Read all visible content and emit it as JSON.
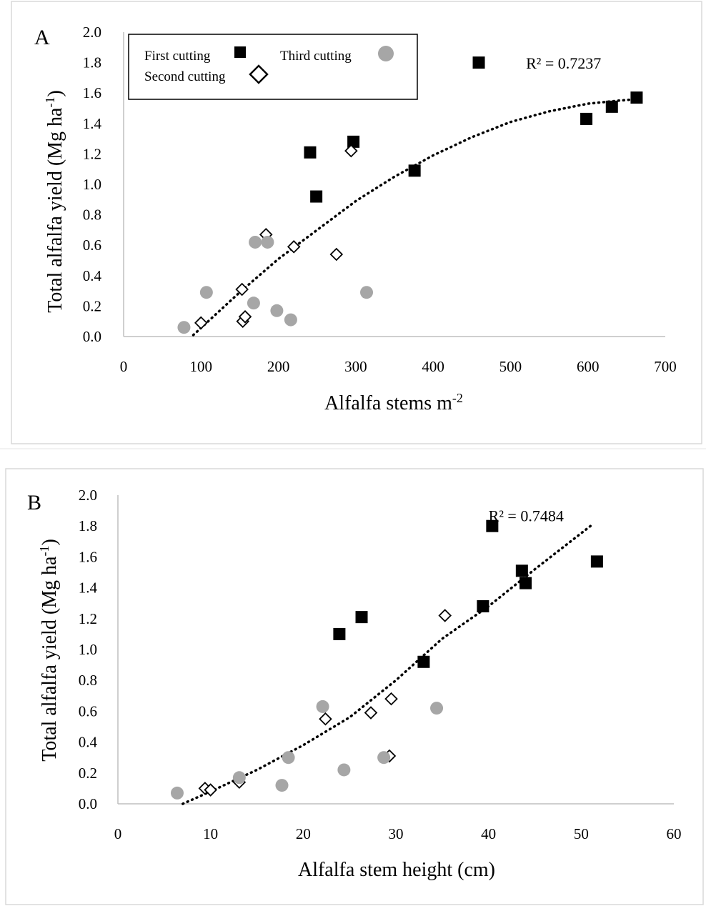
{
  "legend": {
    "first": "First cutting",
    "second": "Second cutting",
    "third": "Third cutting"
  },
  "colors": {
    "first": "#000000",
    "second_stroke": "#000000",
    "third": "#a6a6a6",
    "trend": "#000000",
    "axis": "#bfbfbf",
    "frame": "#d9d9d9"
  },
  "chart_data": [
    {
      "id": "A",
      "type": "scatter",
      "panel_label": "A",
      "xlabel": "Alfalfa stems m",
      "xlabel_sup": "-2",
      "ylabel": "Total alfalfa yield (Mg ha",
      "ylabel_sup": "-1",
      "ylabel_close": ")",
      "xlim": [
        0,
        700
      ],
      "ylim": [
        0,
        2.0
      ],
      "xticks": [
        "0",
        "100",
        "200",
        "300",
        "400",
        "500",
        "600",
        "700"
      ],
      "yticks": [
        "0.0",
        "0.2",
        "0.4",
        "0.6",
        "0.8",
        "1.0",
        "1.2",
        "1.4",
        "1.6",
        "1.8",
        "2.0"
      ],
      "legend_position": "top-left",
      "series": [
        {
          "name": "First cutting",
          "marker": "square",
          "points": [
            [
              241,
              1.21
            ],
            [
              249,
              0.92
            ],
            [
              297,
              1.28
            ],
            [
              376,
              1.09
            ],
            [
              459,
              1.8
            ],
            [
              598,
              1.43
            ],
            [
              631,
              1.51
            ],
            [
              663,
              1.57
            ]
          ]
        },
        {
          "name": "Second cutting",
          "marker": "diamond",
          "points": [
            [
              100,
              0.09
            ],
            [
              153,
              0.31
            ],
            [
              154,
              0.1
            ],
            [
              157,
              0.13
            ],
            [
              184,
              0.67
            ],
            [
              220,
              0.59
            ],
            [
              275,
              0.54
            ],
            [
              294,
              1.22
            ]
          ]
        },
        {
          "name": "Third cutting",
          "marker": "circle",
          "points": [
            [
              78,
              0.06
            ],
            [
              107,
              0.29
            ],
            [
              168,
              0.22
            ],
            [
              170,
              0.62
            ],
            [
              186,
              0.62
            ],
            [
              198,
              0.17
            ],
            [
              216,
              0.11
            ],
            [
              314,
              0.29
            ]
          ]
        }
      ],
      "trendline": {
        "type": "polynomial",
        "x_range": [
          90,
          665
        ],
        "points": [
          [
            90,
            0.01
          ],
          [
            150,
            0.29
          ],
          [
            200,
            0.51
          ],
          [
            250,
            0.7
          ],
          [
            300,
            0.89
          ],
          [
            350,
            1.05
          ],
          [
            400,
            1.19
          ],
          [
            450,
            1.31
          ],
          [
            500,
            1.41
          ],
          [
            550,
            1.48
          ],
          [
            600,
            1.53
          ],
          [
            640,
            1.55
          ],
          [
            665,
            1.56
          ]
        ]
      },
      "annotation": "R² = 0.7237",
      "annotation_at": [
        520,
        1.76
      ]
    },
    {
      "id": "B",
      "type": "scatter",
      "panel_label": "B",
      "xlabel": "Alfalfa stem height (cm)",
      "xlabel_sup": "",
      "ylabel": "Total alfalfa yield (Mg ha",
      "ylabel_sup": "-1",
      "ylabel_close": ")",
      "xlim": [
        0,
        60
      ],
      "ylim": [
        0,
        2.0
      ],
      "xticks": [
        "0",
        "10",
        "20",
        "30",
        "40",
        "50",
        "60"
      ],
      "yticks": [
        "0.0",
        "0.2",
        "0.4",
        "0.6",
        "0.8",
        "1.0",
        "1.2",
        "1.4",
        "1.6",
        "1.8",
        "2.0"
      ],
      "series": [
        {
          "name": "First cutting",
          "marker": "square",
          "points": [
            [
              23.9,
              1.1
            ],
            [
              26.3,
              1.21
            ],
            [
              33.0,
              0.92
            ],
            [
              39.4,
              1.28
            ],
            [
              40.4,
              1.8
            ],
            [
              43.6,
              1.51
            ],
            [
              44.0,
              1.43
            ],
            [
              51.7,
              1.57
            ]
          ]
        },
        {
          "name": "Second cutting",
          "marker": "diamond",
          "points": [
            [
              9.4,
              0.1
            ],
            [
              10.0,
              0.09
            ],
            [
              13.1,
              0.14
            ],
            [
              22.4,
              0.55
            ],
            [
              27.3,
              0.59
            ],
            [
              29.5,
              0.68
            ],
            [
              29.3,
              0.31
            ],
            [
              35.3,
              1.22
            ]
          ]
        },
        {
          "name": "Third cutting",
          "marker": "circle",
          "points": [
            [
              6.4,
              0.07
            ],
            [
              13.1,
              0.17
            ],
            [
              17.7,
              0.12
            ],
            [
              18.4,
              0.3
            ],
            [
              22.1,
              0.63
            ],
            [
              24.4,
              0.22
            ],
            [
              28.7,
              0.3
            ],
            [
              34.4,
              0.62
            ]
          ]
        }
      ],
      "trendline": {
        "type": "polynomial",
        "x_range": [
          7,
          51
        ],
        "points": [
          [
            7,
            0.0
          ],
          [
            10,
            0.08
          ],
          [
            15,
            0.22
          ],
          [
            20,
            0.38
          ],
          [
            25,
            0.56
          ],
          [
            30,
            0.8
          ],
          [
            35,
            1.07
          ],
          [
            40,
            1.28
          ],
          [
            45,
            1.52
          ],
          [
            51,
            1.8
          ]
        ]
      },
      "annotation": "R² = 0.7484",
      "annotation_at": [
        40.0,
        1.83
      ]
    }
  ]
}
